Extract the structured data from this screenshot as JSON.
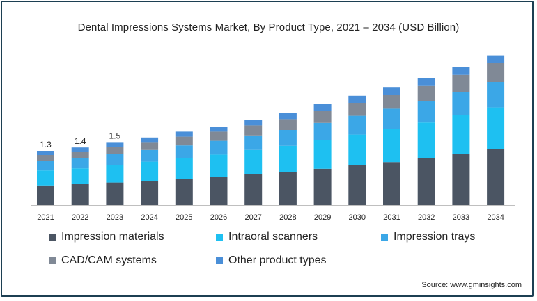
{
  "chart_data": {
    "type": "bar",
    "stacked": true,
    "title": "Dental Impressions Systems Market, By Product Type, 2021 – 2034 (USD Billion)",
    "xlabel": "",
    "ylabel": "",
    "categories": [
      "2021",
      "2022",
      "2023",
      "2024",
      "2025",
      "2026",
      "2027",
      "2028",
      "2029",
      "2030",
      "2031",
      "2032",
      "2033",
      "2034"
    ],
    "ylim": [
      0,
      4.0
    ],
    "grid": false,
    "legend_position": "bottom",
    "data_labels": {
      "2021": "1.3",
      "2022": "1.4",
      "2023": "1.5"
    },
    "series": [
      {
        "name": "Impression materials",
        "color": "#4b5563",
        "values": [
          0.47,
          0.5,
          0.54,
          0.58,
          0.63,
          0.68,
          0.74,
          0.8,
          0.87,
          0.95,
          1.03,
          1.12,
          1.23,
          1.35
        ]
      },
      {
        "name": "Intraoral scanners",
        "color": "#1ec0f1",
        "values": [
          0.36,
          0.38,
          0.42,
          0.46,
          0.5,
          0.53,
          0.58,
          0.62,
          0.68,
          0.74,
          0.8,
          0.86,
          0.92,
          0.99
        ]
      },
      {
        "name": "Impression trays",
        "color": "#3ba7e7",
        "values": [
          0.22,
          0.24,
          0.26,
          0.28,
          0.3,
          0.33,
          0.35,
          0.38,
          0.42,
          0.45,
          0.48,
          0.52,
          0.56,
          0.61
        ]
      },
      {
        "name": "CAD/CAM systems",
        "color": "#808996",
        "values": [
          0.15,
          0.16,
          0.18,
          0.19,
          0.21,
          0.22,
          0.24,
          0.26,
          0.29,
          0.31,
          0.34,
          0.37,
          0.41,
          0.45
        ]
      },
      {
        "name": "Other product types",
        "color": "#4a8fd8",
        "values": [
          0.1,
          0.1,
          0.11,
          0.11,
          0.12,
          0.12,
          0.13,
          0.15,
          0.16,
          0.17,
          0.18,
          0.18,
          0.18,
          0.19
        ]
      }
    ]
  },
  "source": "Source: www.gminsights.com"
}
